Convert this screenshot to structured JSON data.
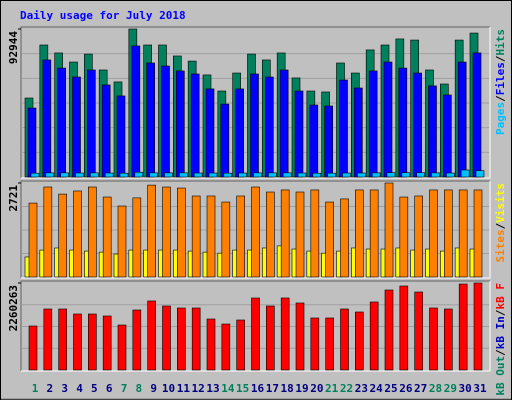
{
  "title": "Daily usage for July 2018",
  "legend_separator": "/",
  "chart_data": [
    {
      "type": "bar",
      "ylim": [
        0,
        92944
      ],
      "yticks": [
        92944
      ],
      "series": [
        {
          "name": "Hits",
          "color": "#00805c",
          "values": [
            49600,
            82900,
            77900,
            72200,
            77200,
            67200,
            59700,
            92944,
            82900,
            82900,
            76000,
            72800,
            64100,
            54000,
            65300,
            77200,
            73500,
            77900,
            62200,
            54000,
            53400,
            71600,
            65300,
            79800,
            82900,
            86700,
            86000,
            67200,
            58400,
            86000,
            90400
          ]
        },
        {
          "name": "Files",
          "color": "#0000ff",
          "values": [
            43300,
            73500,
            68400,
            62800,
            67200,
            57800,
            50900,
            82300,
            71600,
            69700,
            66600,
            64700,
            55300,
            45800,
            55300,
            64700,
            62800,
            67200,
            54000,
            45200,
            44600,
            60900,
            55900,
            66600,
            72200,
            68400,
            65300,
            57200,
            51500,
            72200,
            77900
          ]
        },
        {
          "name": "Pages",
          "color": "#00c0ff",
          "values": [
            2400,
            2600,
            2600,
            2500,
            2600,
            2500,
            2400,
            3000,
            2600,
            2600,
            2600,
            2500,
            2500,
            2400,
            2500,
            2600,
            2600,
            2600,
            2500,
            2400,
            2400,
            2500,
            2500,
            2600,
            2700,
            2700,
            2700,
            2600,
            2500,
            4400,
            4000
          ]
        }
      ]
    },
    {
      "type": "bar",
      "ylim": [
        0,
        2721
      ],
      "yticks": [
        2721
      ],
      "series": [
        {
          "name": "Visits",
          "color": "#ffff00",
          "values": [
            580,
            780,
            840,
            780,
            750,
            720,
            665,
            780,
            780,
            780,
            780,
            750,
            720,
            690,
            780,
            780,
            840,
            900,
            810,
            750,
            690,
            750,
            840,
            810,
            810,
            840,
            780,
            810,
            750,
            840,
            810
          ]
        },
        {
          "name": "Sites",
          "color": "#ff8000",
          "values": [
            2140,
            2605,
            2400,
            2490,
            2605,
            2315,
            2055,
            2290,
            2660,
            2605,
            2575,
            2345,
            2345,
            2170,
            2345,
            2605,
            2460,
            2520,
            2460,
            2520,
            2170,
            2260,
            2520,
            2520,
            2721,
            2315,
            2345,
            2520,
            2520,
            2520,
            2520
          ]
        }
      ]
    },
    {
      "type": "bar",
      "ylim": [
        0,
        2260263
      ],
      "yticks": [
        2260263
      ],
      "categories": [
        "1",
        "2",
        "3",
        "4",
        "5",
        "6",
        "7",
        "8",
        "9",
        "10",
        "11",
        "12",
        "13",
        "14",
        "15",
        "16",
        "17",
        "18",
        "19",
        "20",
        "21",
        "22",
        "23",
        "24",
        "25",
        "26",
        "27",
        "28",
        "29",
        "30",
        "31"
      ],
      "category_colors": [
        "#00805c",
        "#000080",
        "#000080",
        "#000080",
        "#000080",
        "#000080",
        "#00805c",
        "#00805c",
        "#000080",
        "#000080",
        "#000080",
        "#000080",
        "#000080",
        "#00805c",
        "#00805c",
        "#000080",
        "#000080",
        "#000080",
        "#000080",
        "#000080",
        "#00805c",
        "#00805c",
        "#000080",
        "#000080",
        "#000080",
        "#000080",
        "#000080",
        "#00805c",
        "#00805c",
        "#000080",
        "#000080"
      ],
      "series": [
        {
          "name": "kB F",
          "color": "#ff0000",
          "values": [
            1143000,
            1585000,
            1585000,
            1455000,
            1455000,
            1403000,
            1169000,
            1559000,
            1793000,
            1663000,
            1611000,
            1611000,
            1325000,
            1195000,
            1299000,
            1871000,
            1663000,
            1871000,
            1741000,
            1351000,
            1351000,
            1585000,
            1507000,
            1767000,
            2078000,
            2182000,
            2026000,
            1611000,
            1585000,
            2234000,
            2260263
          ]
        },
        {
          "name": "kB In",
          "color": "#0000c0"
        },
        {
          "name": "kB Out",
          "color": "#00805c"
        }
      ]
    }
  ]
}
